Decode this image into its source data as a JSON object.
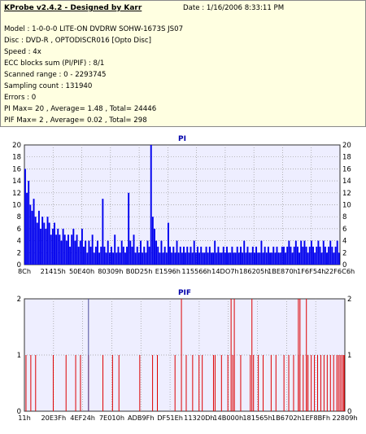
{
  "header": {
    "title": "KProbe v2.4.2 - Designed by Karr",
    "date": "Date : 1/16/2006 8:33:11 PM"
  },
  "info_lines": [
    "Model : 1-0-0-0 LITE-ON DVDRW SOHW-1673S JS07",
    "Disc : DVD-R , OPTODISCR016 [Opto Disc]",
    "Speed : 4x",
    "ECC blocks sum (PI/PIF) : 8/1",
    "Scanned range : 0 - 2293745",
    "Sampling count : 131940",
    "Errors : 0",
    "PI Max= 20 , Average= 1.48 , Total= 24446",
    "PIF Max= 2 , Average= 0.02 , Total= 298"
  ],
  "chart_data": [
    {
      "type": "bar",
      "title": "PI",
      "ylim": [
        0,
        20
      ],
      "yticks": [
        0,
        2,
        4,
        6,
        8,
        10,
        12,
        14,
        16,
        18,
        20
      ],
      "xticks": [
        "8Ch",
        "21415h",
        "50E40h",
        "80309h",
        "B0D25h",
        "E1596h",
        "115566h",
        "14DO7h",
        "186205h",
        "1BE870h",
        "1F6F54h",
        "22F6C6h"
      ],
      "grid": true,
      "bar_color": "#0000ee",
      "values": [
        16,
        12,
        14,
        10,
        9,
        11,
        8,
        7,
        9,
        6,
        8,
        7,
        6,
        8,
        7,
        5,
        6,
        7,
        5,
        6,
        5,
        4,
        6,
        5,
        4,
        5,
        3,
        5,
        6,
        4,
        5,
        3,
        4,
        6,
        3,
        4,
        2,
        4,
        3,
        5,
        2,
        3,
        4,
        2,
        3,
        11,
        3,
        2,
        4,
        2,
        3,
        2,
        5,
        2,
        3,
        2,
        4,
        3,
        2,
        3,
        12,
        4,
        3,
        5,
        2,
        3,
        2,
        4,
        2,
        3,
        2,
        4,
        3,
        20,
        8,
        6,
        4,
        3,
        2,
        4,
        2,
        3,
        2,
        7,
        3,
        2,
        3,
        2,
        4,
        2,
        3,
        2,
        3,
        2,
        3,
        2,
        3,
        2,
        4,
        2,
        3,
        2,
        3,
        2,
        2,
        3,
        2,
        3,
        2,
        2,
        4,
        2,
        3,
        2,
        2,
        3,
        2,
        3,
        2,
        2,
        3,
        2,
        2,
        3,
        2,
        3,
        2,
        4,
        2,
        3,
        2,
        2,
        3,
        2,
        3,
        2,
        2,
        4,
        2,
        3,
        2,
        3,
        2,
        2,
        3,
        2,
        3,
        2,
        2,
        3,
        3,
        2,
        3,
        4,
        3,
        2,
        3,
        4,
        3,
        2,
        4,
        3,
        4,
        3,
        2,
        3,
        4,
        3,
        2,
        3,
        4,
        3,
        2,
        4,
        3,
        2,
        3,
        4,
        3,
        2,
        3,
        4,
        2
      ]
    },
    {
      "type": "bar",
      "title": "PIF",
      "ylim": [
        0,
        2
      ],
      "yticks": [
        0,
        1,
        2
      ],
      "xticks": [
        "11h",
        "20E3Fh",
        "4EF24h",
        "7E010h",
        "ADB9Fh",
        "DF51Eh",
        "11320Dh",
        "14B000h",
        "181565h",
        "1B6702h",
        "1EF8BFh",
        "22809h"
      ],
      "grid": true,
      "series": [
        {
          "values": [
            1,
            1,
            1,
            1,
            1,
            1,
            1,
            1,
            1,
            1,
            1,
            1,
            1,
            1,
            1,
            1,
            1,
            1,
            1,
            1,
            1,
            1,
            1,
            1,
            1,
            1,
            1,
            1,
            1,
            1,
            1,
            1,
            1,
            1,
            1,
            1,
            1,
            1,
            1,
            1,
            1,
            1,
            1,
            1,
            1,
            1,
            1,
            1,
            1,
            1,
            1,
            1,
            1
          ],
          "positions": [
            0.005,
            0.02,
            0.035,
            0.09,
            0.13,
            0.16,
            0.175,
            0.2,
            0.245,
            0.295,
            0.36,
            0.4,
            0.415,
            0.47,
            0.525,
            0.545,
            0.555,
            0.59,
            0.615,
            0.635,
            0.655,
            0.675,
            0.705,
            0.715,
            0.73,
            0.745,
            0.77,
            0.785,
            0.81,
            0.825,
            0.84,
            0.855,
            0.87,
            0.88,
            0.885,
            0.895,
            0.905,
            0.915,
            0.925,
            0.935,
            0.945,
            0.955,
            0.965,
            0.975,
            0.98,
            0.985,
            0.99,
            0.995,
            0.998,
            0.275,
            0.595,
            0.505,
            0.65
          ]
        },
        {
          "values": [
            2,
            2,
            2,
            2,
            2,
            2,
            2
          ],
          "positions": [
            0.49,
            0.645,
            0.655,
            0.71,
            0.855,
            0.86,
            0.88
          ]
        },
        {
          "values": [
            2
          ],
          "positions": [
            0.2
          ],
          "color": "#4a4a9a"
        }
      ]
    }
  ]
}
